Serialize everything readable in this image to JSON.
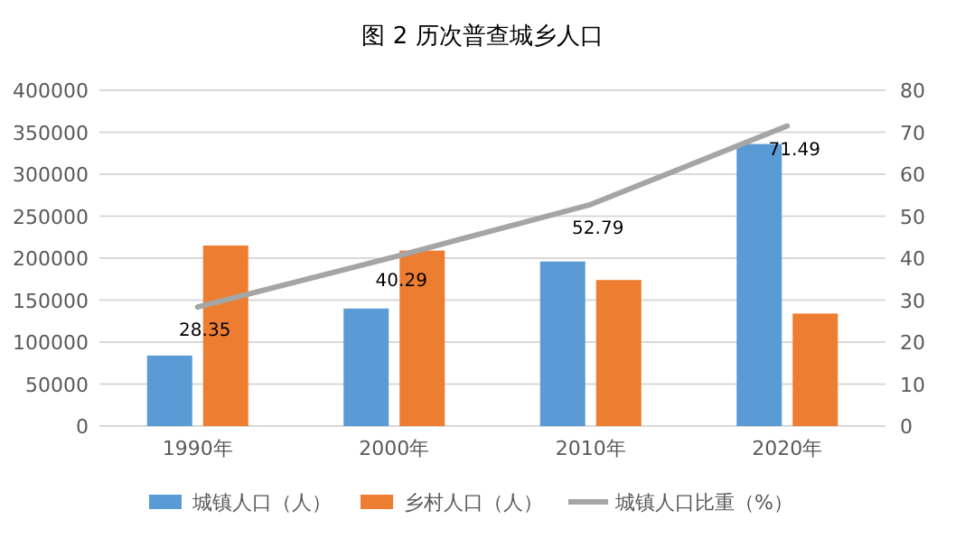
{
  "chart_data": {
    "type": "bar",
    "title": "图 2 历次普查城乡人口",
    "categories": [
      "1990年",
      "2000年",
      "2010年",
      "2020年"
    ],
    "series": [
      {
        "name": "城镇人口（人）",
        "color": "#5b9bd5",
        "values": [
          84000,
          140000,
          196000,
          336000
        ]
      },
      {
        "name": "乡村人口（人）",
        "color": "#ed7d31",
        "values": [
          215000,
          209000,
          174000,
          134000
        ]
      },
      {
        "name": "城镇人口比重（%）",
        "type": "line",
        "axis": "y2",
        "color": "#a5a5a5",
        "values": [
          28.35,
          40.29,
          52.79,
          71.49
        ],
        "value_labels": [
          "28.35",
          "40.29",
          "52.79",
          "71.49"
        ]
      }
    ],
    "ylim": [
      0,
      400000
    ],
    "yticks": [
      0,
      50000,
      100000,
      150000,
      200000,
      250000,
      300000,
      350000,
      400000
    ],
    "y2lim": [
      0,
      80
    ],
    "y2ticks": [
      0,
      10,
      20,
      30,
      40,
      50,
      60,
      70,
      80
    ],
    "grid": "y",
    "legend": "bottom",
    "marker": "none"
  }
}
